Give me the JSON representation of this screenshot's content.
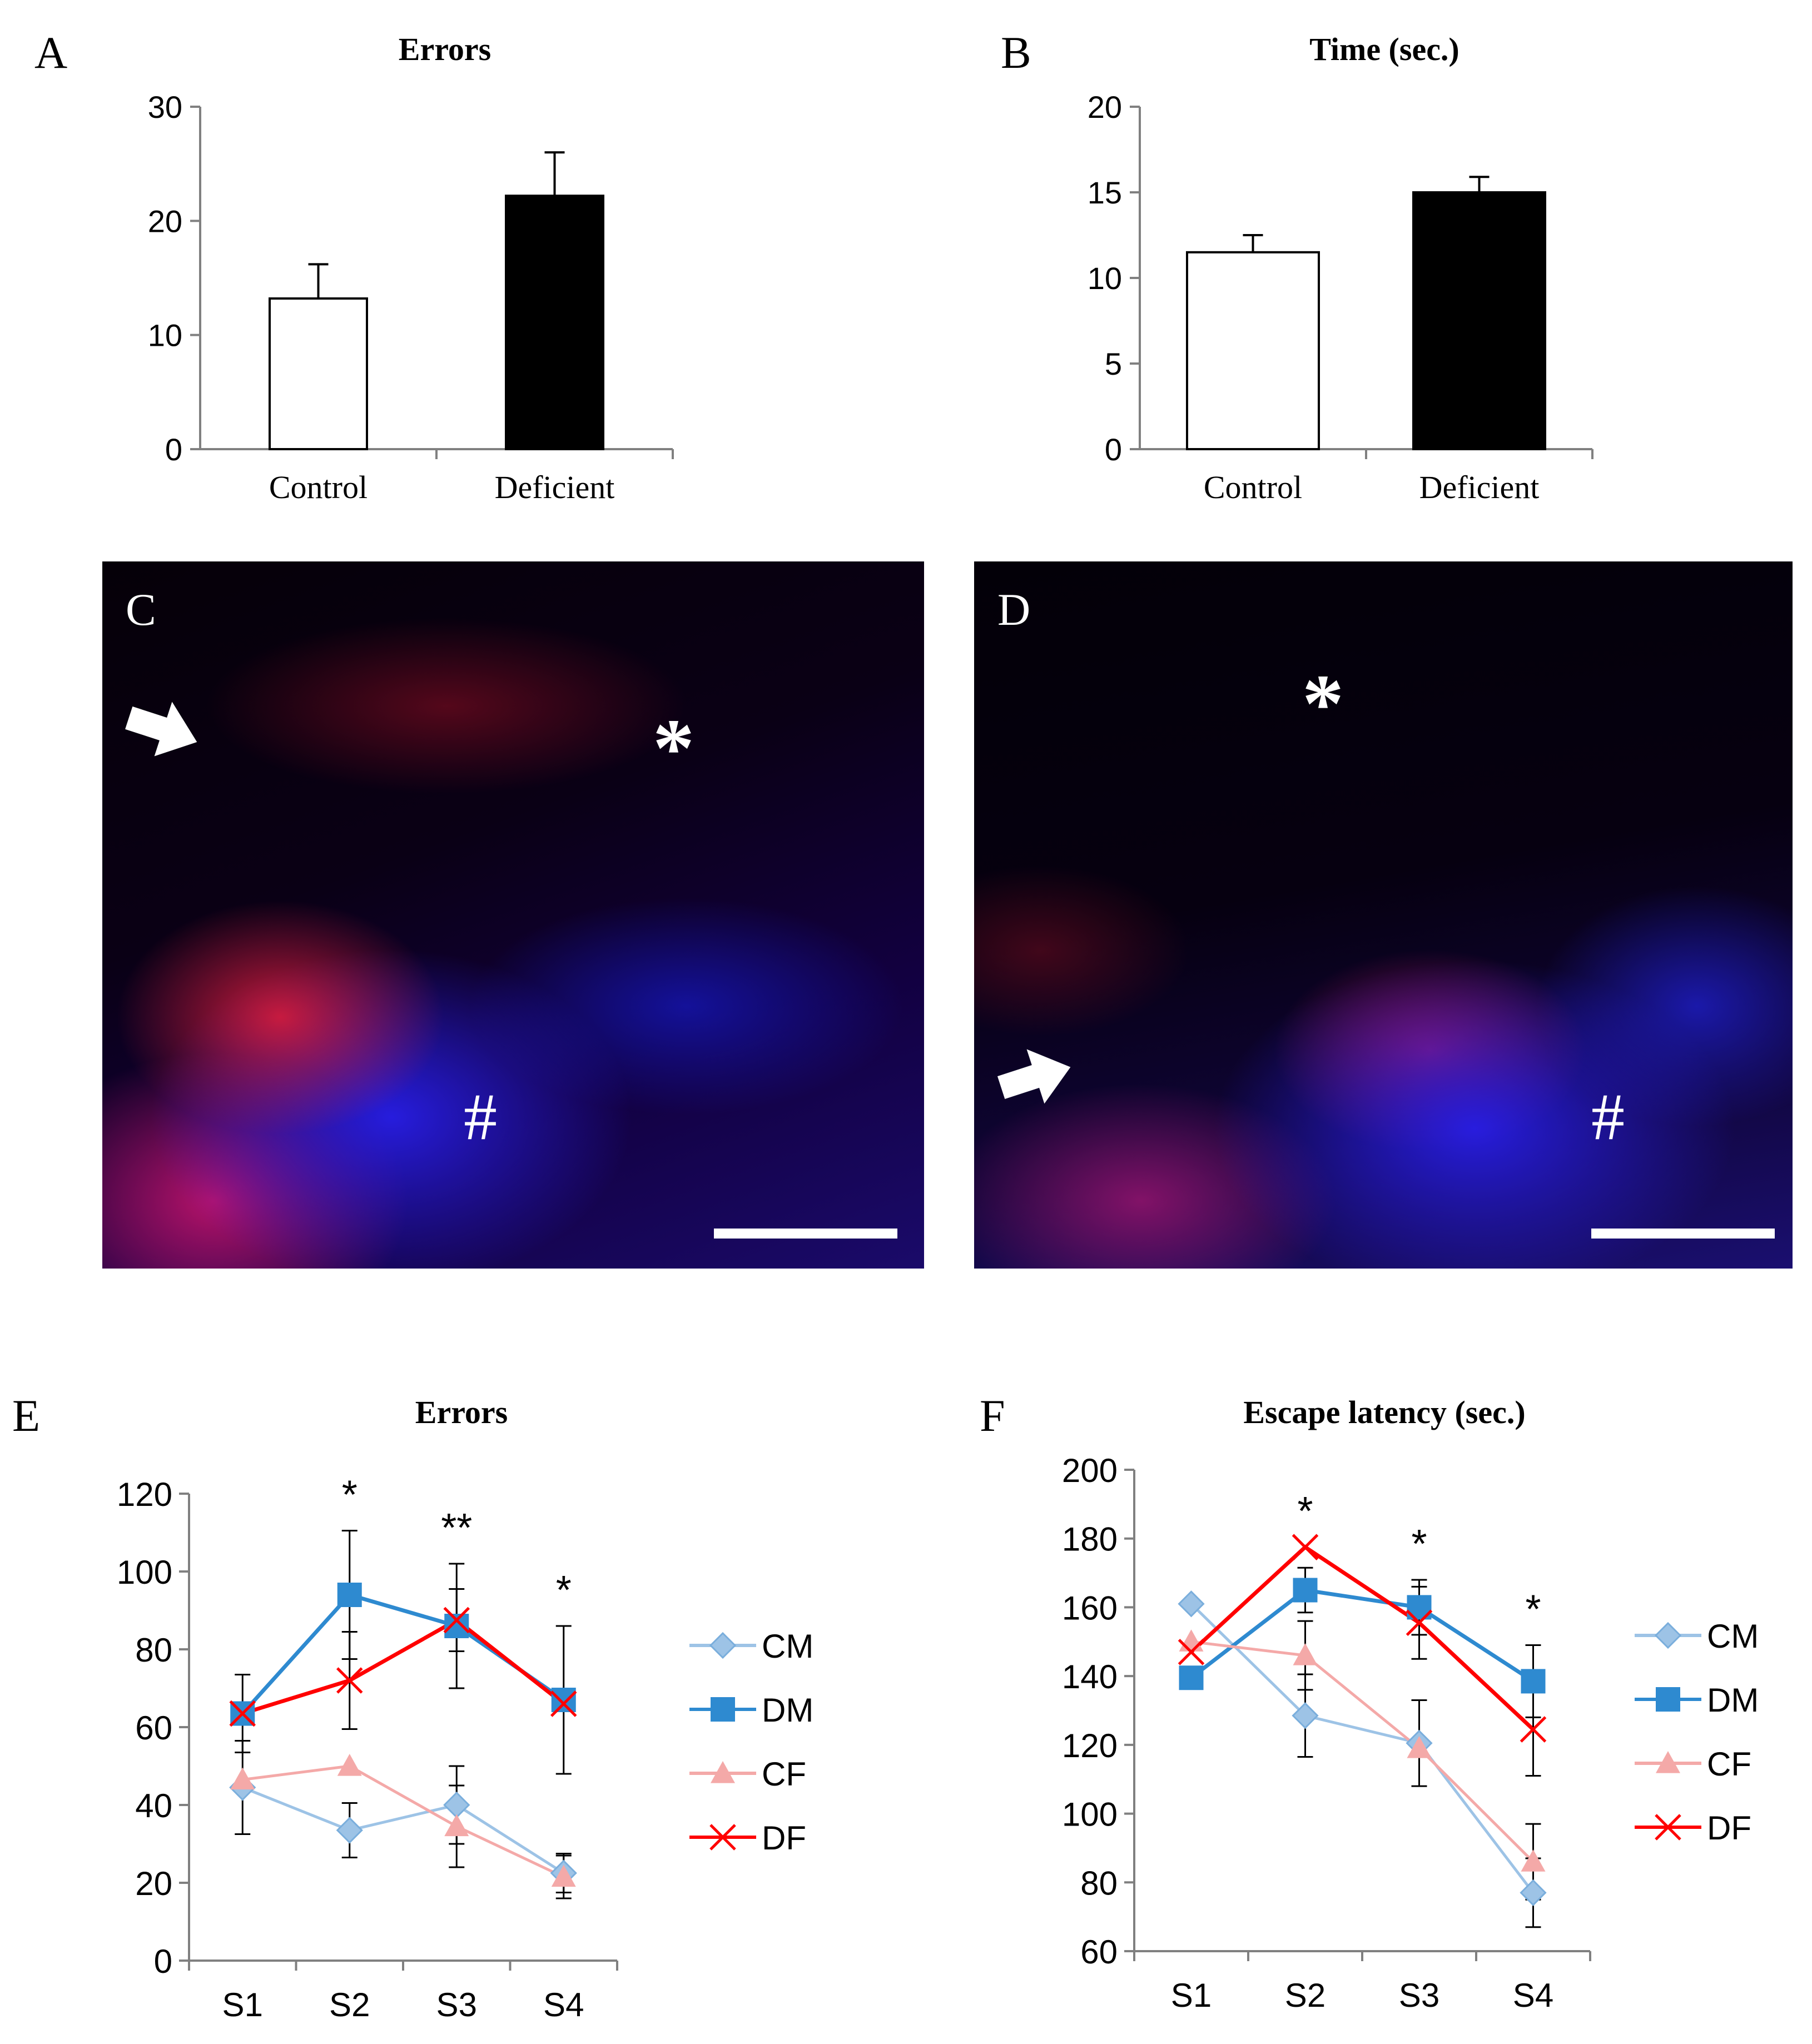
{
  "chart_data": [
    {
      "id": "A",
      "type": "bar",
      "title": "Errors",
      "categories": [
        "Control",
        "Deficient"
      ],
      "values": [
        13.2,
        22.2
      ],
      "errors": [
        3.0,
        3.8
      ],
      "colors": [
        "#ffffff",
        "#000000"
      ],
      "ylim": [
        0,
        30
      ],
      "yticks": [
        0,
        10,
        20,
        30
      ],
      "xlabel": "",
      "ylabel": ""
    },
    {
      "id": "B",
      "type": "bar",
      "title": "Time (sec.)",
      "categories": [
        "Control",
        "Deficient"
      ],
      "values": [
        11.5,
        15.0
      ],
      "errors": [
        1.0,
        0.9
      ],
      "colors": [
        "#ffffff",
        "#000000"
      ],
      "ylim": [
        0,
        20
      ],
      "yticks": [
        0,
        5,
        10,
        15,
        20
      ],
      "xlabel": "",
      "ylabel": ""
    },
    {
      "id": "E",
      "type": "line",
      "title": "Errors",
      "categories": [
        "S1",
        "S2",
        "S3",
        "S4"
      ],
      "ylim": [
        0,
        120
      ],
      "yticks": [
        0,
        20,
        40,
        60,
        80,
        100,
        120
      ],
      "significance": [
        "",
        "*",
        "**",
        "*"
      ],
      "series": [
        {
          "name": "CM",
          "values": [
            44.5,
            33.5,
            40,
            22.5
          ],
          "errors": [
            12,
            7,
            10,
            5
          ],
          "color": "#9dc3e6",
          "marker": "diamond"
        },
        {
          "name": "DM",
          "values": [
            63.5,
            94,
            86,
            67
          ],
          "errors": [
            10,
            16.5,
            16,
            19
          ],
          "color": "#2e8ad0",
          "marker": "square"
        },
        {
          "name": "CF",
          "values": [
            46.5,
            50,
            34.5,
            21.5
          ],
          "errors": [
            0,
            0,
            10.5,
            5.5
          ],
          "color": "#f4a9a8",
          "marker": "triangle"
        },
        {
          "name": "DF",
          "values": [
            63.5,
            72,
            87.5,
            66
          ],
          "errors": [
            0,
            12.5,
            8,
            0
          ],
          "color": "#ff0000",
          "marker": "x"
        }
      ]
    },
    {
      "id": "F",
      "type": "line",
      "title": "Escape latency (sec.)",
      "categories": [
        "S1",
        "S2",
        "S3",
        "S4"
      ],
      "ylim": [
        60,
        200
      ],
      "yticks": [
        60,
        80,
        100,
        120,
        140,
        160,
        180,
        200
      ],
      "significance": [
        "",
        "*",
        "*",
        "*"
      ],
      "series": [
        {
          "name": "CM",
          "values": [
            161,
            128.5,
            120.5,
            77
          ],
          "errors": [
            0,
            12,
            12.5,
            10
          ],
          "color": "#9dc3e6",
          "marker": "diamond"
        },
        {
          "name": "DM",
          "values": [
            139.5,
            165,
            160,
            138.5
          ],
          "errors": [
            0,
            6.5,
            8,
            10.5
          ],
          "color": "#2e8ad0",
          "marker": "square"
        },
        {
          "name": "CF",
          "values": [
            150,
            146,
            119,
            86
          ],
          "errors": [
            0,
            10,
            0,
            11
          ],
          "color": "#f4a9a8",
          "marker": "triangle"
        },
        {
          "name": "DF",
          "values": [
            147,
            177.5,
            155.5,
            124.5
          ],
          "errors": [
            0,
            0,
            10.5,
            13.5
          ],
          "color": "#ff0000",
          "marker": "x"
        }
      ]
    }
  ],
  "panels": {
    "A": "A",
    "B": "B",
    "C": "C",
    "D": "D",
    "E": "E",
    "F": "F"
  },
  "micrographs": {
    "C": {
      "asterisk": "*",
      "hash": "#"
    },
    "D": {
      "asterisk": "*",
      "hash": "#"
    }
  }
}
